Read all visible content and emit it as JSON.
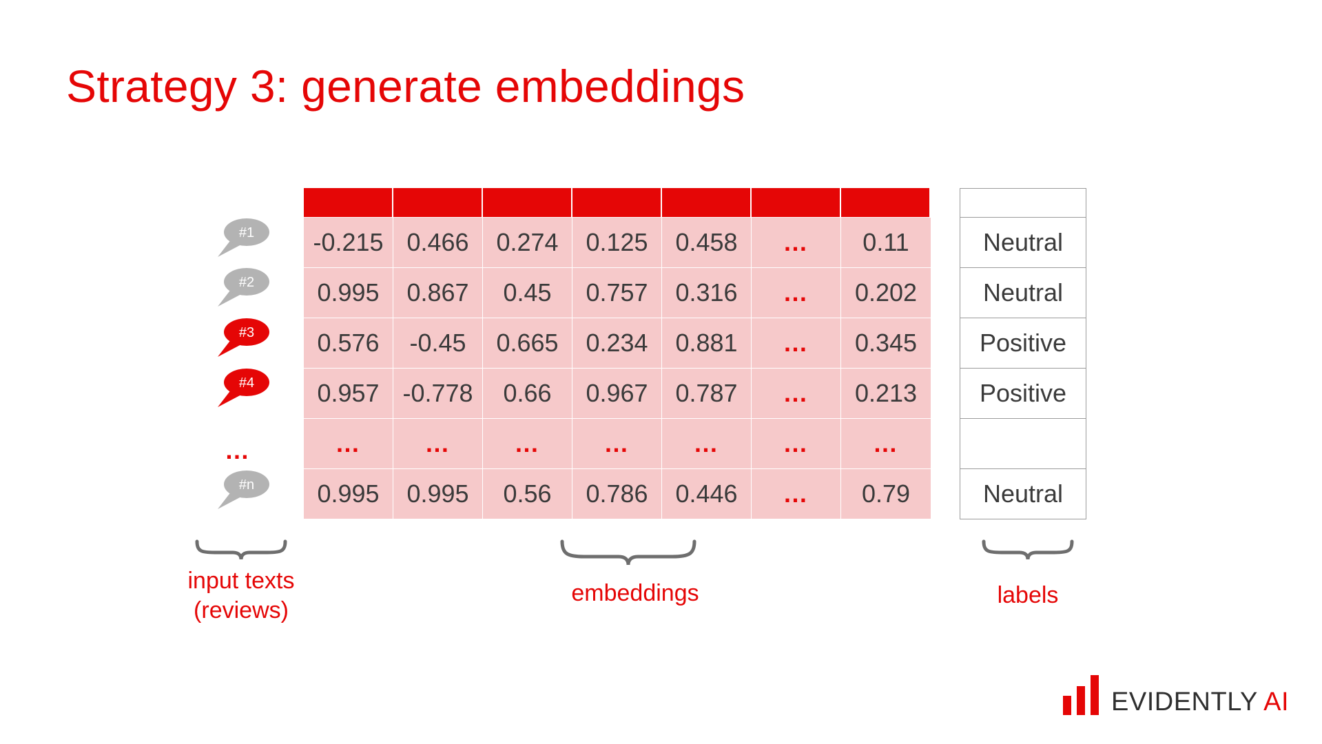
{
  "title": "Strategy 3: generate embeddings",
  "inputs": [
    "#1",
    "#2",
    "#3",
    "#4",
    "…",
    "#n"
  ],
  "input_highlight": [
    false,
    false,
    true,
    true,
    false,
    false
  ],
  "matrix": [
    [
      "-0.215",
      "0.466",
      "0.274",
      "0.125",
      "0.458",
      "…",
      "0.11"
    ],
    [
      "0.995",
      "0.867",
      "0.45",
      "0.757",
      "0.316",
      "…",
      "0.202"
    ],
    [
      "0.576",
      "-0.45",
      "0.665",
      "0.234",
      "0.881",
      "…",
      "0.345"
    ],
    [
      "0.957",
      "-0.778",
      "0.66",
      "0.967",
      "0.787",
      "…",
      "0.213"
    ],
    [
      "…",
      "…",
      "…",
      "…",
      "…",
      "…",
      "…"
    ],
    [
      "0.995",
      "0.995",
      "0.56",
      "0.786",
      "0.446",
      "…",
      "0.79"
    ]
  ],
  "labels": [
    "Neutral",
    "Neutral",
    "Positive",
    "Positive",
    "",
    "Neutral"
  ],
  "captions": {
    "inputs_line1": "input texts",
    "inputs_line2": "(reviews)",
    "embeddings": "embeddings",
    "labels": "labels"
  },
  "logo": {
    "main": "EVIDENTLY",
    "accent": "AI"
  },
  "colors": {
    "accent": "#e50606",
    "cell_fill": "#f6c9ca",
    "bubble_gray": "#b3b3b3",
    "text": "#3a3a3a"
  }
}
